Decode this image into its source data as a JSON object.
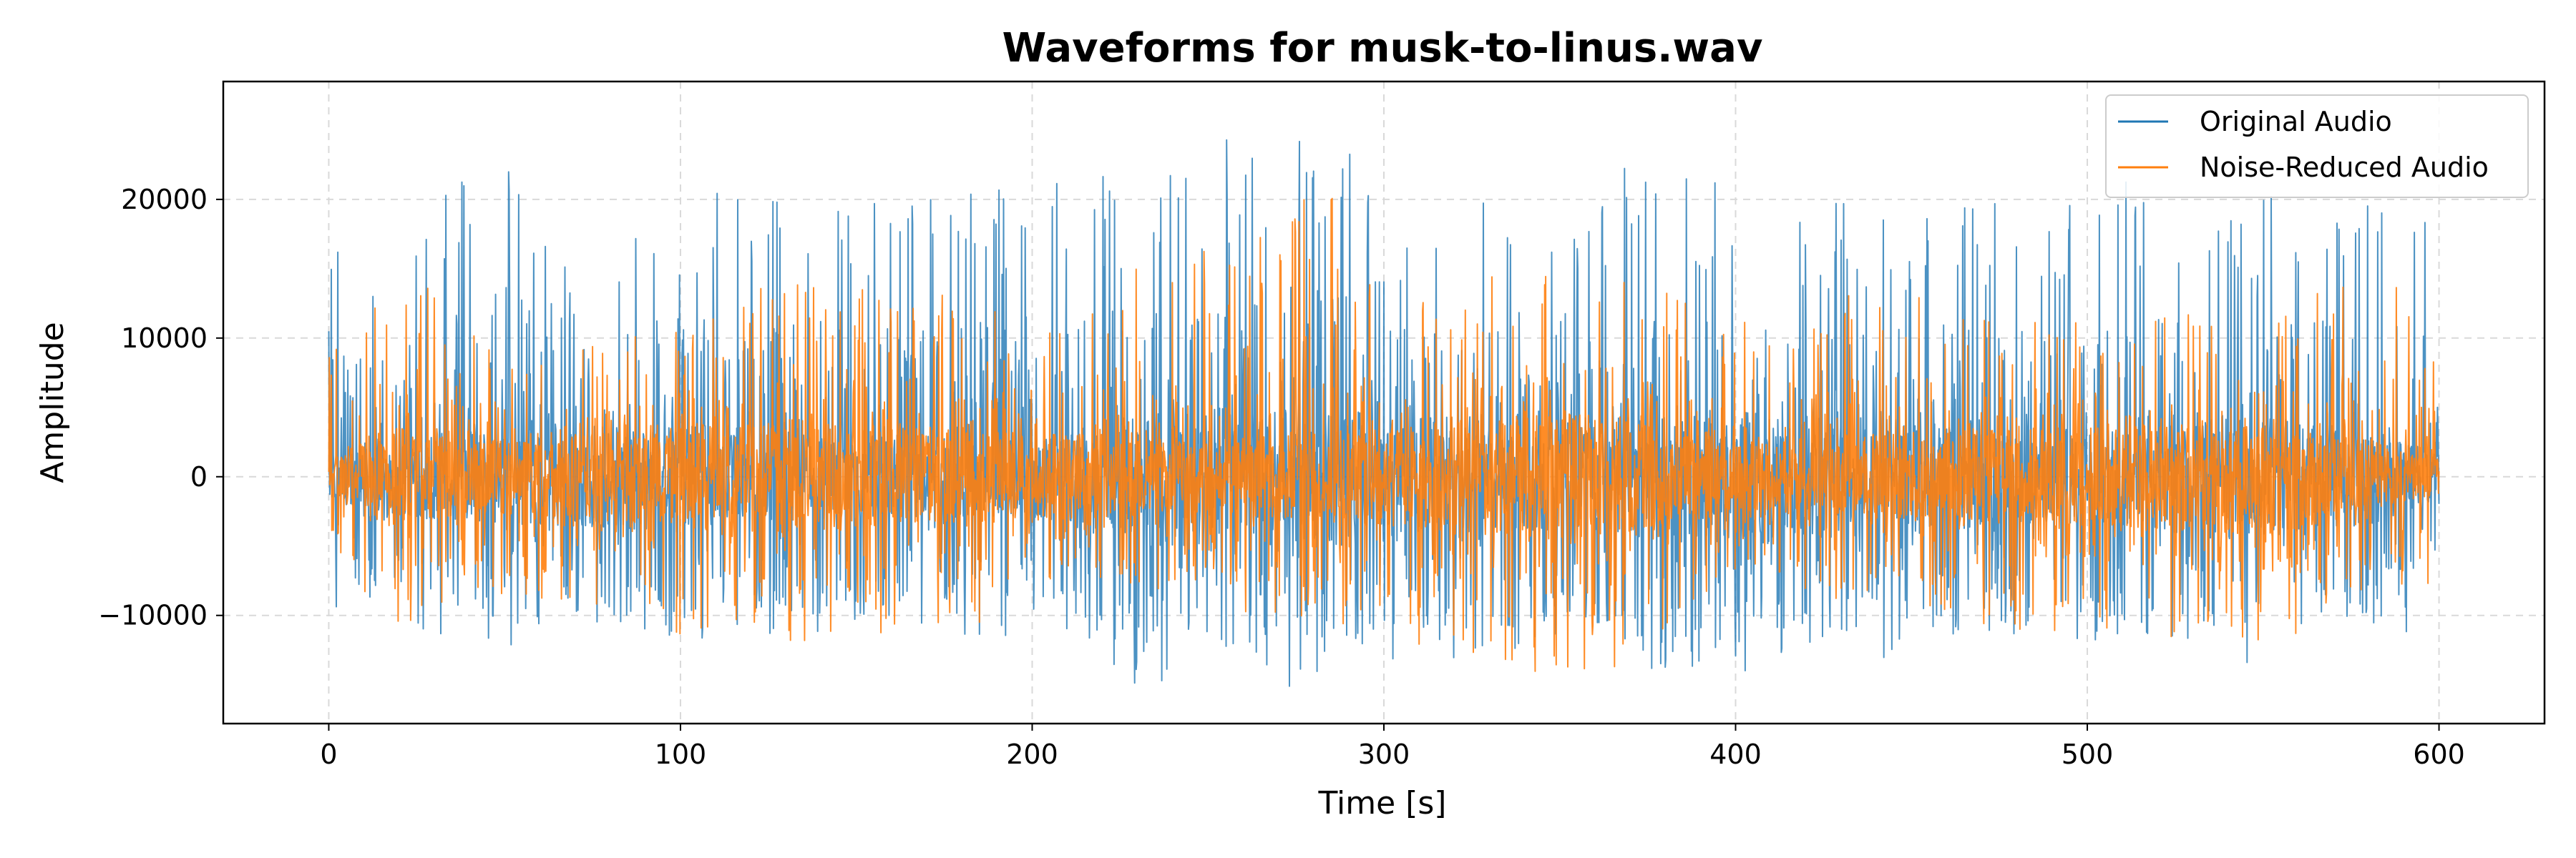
{
  "chart_data": {
    "type": "line",
    "title": "Waveforms for musk-to-linus.wav",
    "xlabel": "Time [s]",
    "ylabel": "Amplitude",
    "xlim": [
      -30,
      630
    ],
    "ylim": [
      -17800,
      28500
    ],
    "x_ticks": [
      0,
      100,
      200,
      300,
      400,
      500,
      600
    ],
    "x_tick_labels": [
      "0",
      "100",
      "200",
      "300",
      "400",
      "500",
      "600"
    ],
    "y_ticks": [
      -10000,
      0,
      10000,
      20000
    ],
    "y_tick_labels": [
      "−10000",
      "0",
      "10000",
      "20000"
    ],
    "grid": true,
    "legend_position": "top-right",
    "series": [
      {
        "name": "Original Audio",
        "color": "#1f77b4",
        "x_range": [
          0,
          600
        ],
        "envelope_max": [
          [
            0,
            16000
          ],
          [
            5,
            19000
          ],
          [
            20,
            15000
          ],
          [
            30,
            23000
          ],
          [
            52,
            25000
          ],
          [
            75,
            12000
          ],
          [
            90,
            22000
          ],
          [
            100,
            21000
          ],
          [
            120,
            20000
          ],
          [
            140,
            22000
          ],
          [
            150,
            20000
          ],
          [
            190,
            21000
          ],
          [
            210,
            22000
          ],
          [
            287,
            26500
          ],
          [
            300,
            19000
          ],
          [
            350,
            23000
          ],
          [
            390,
            22000
          ],
          [
            410,
            21000
          ],
          [
            440,
            20000
          ],
          [
            475,
            21000
          ],
          [
            510,
            22000
          ],
          [
            540,
            19000
          ],
          [
            560,
            21000
          ],
          [
            580,
            20000
          ],
          [
            595,
            21000
          ],
          [
            600,
            8000
          ]
        ],
        "envelope_min": [
          [
            0,
            -5000
          ],
          [
            10,
            -9000
          ],
          [
            45,
            -10500
          ],
          [
            90,
            -12000
          ],
          [
            105,
            -13000
          ],
          [
            110,
            -10000
          ],
          [
            200,
            -9000
          ],
          [
            233,
            -15700
          ],
          [
            291,
            -15200
          ],
          [
            350,
            -12000
          ],
          [
            385,
            -14700
          ],
          [
            420,
            -14500
          ],
          [
            475,
            -11000
          ],
          [
            510,
            -10500
          ],
          [
            545,
            -14500
          ],
          [
            580,
            -11000
          ],
          [
            600,
            -5000
          ]
        ]
      },
      {
        "name": "Noise-Reduced Audio",
        "color": "#ff7f0e",
        "x_range": [
          0,
          600
        ],
        "envelope_max": [
          [
            0,
            10000
          ],
          [
            30,
            15000
          ],
          [
            60,
            9000
          ],
          [
            100,
            11000
          ],
          [
            130,
            15000
          ],
          [
            200,
            12000
          ],
          [
            287,
            21000
          ],
          [
            300,
            12000
          ],
          [
            350,
            16000
          ],
          [
            400,
            12000
          ],
          [
            450,
            14000
          ],
          [
            500,
            11000
          ],
          [
            550,
            13000
          ],
          [
            597,
            16000
          ],
          [
            600,
            8000
          ]
        ],
        "envelope_min": [
          [
            0,
            -4000
          ],
          [
            17,
            -11800
          ],
          [
            40,
            -8000
          ],
          [
            88,
            -10500
          ],
          [
            104,
            -14000
          ],
          [
            176,
            -10900
          ],
          [
            250,
            -8000
          ],
          [
            356,
            -15300
          ],
          [
            400,
            -8000
          ],
          [
            470,
            -11000
          ],
          [
            545,
            -12000
          ],
          [
            553,
            -13000
          ],
          [
            600,
            -4000
          ]
        ]
      }
    ]
  },
  "colors": {
    "original": "#1f77b4",
    "reduced": "#ff7f0e",
    "grid": "#d9d9d9"
  }
}
